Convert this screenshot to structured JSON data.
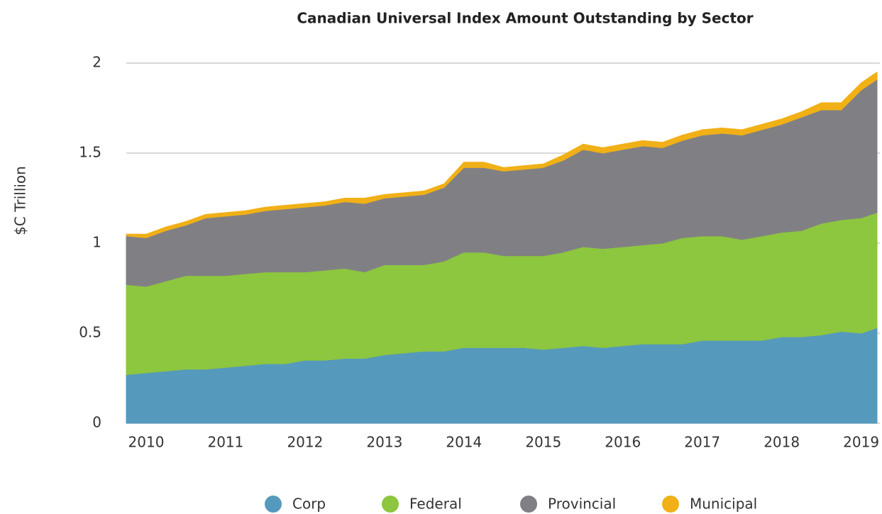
{
  "chart_data": {
    "type": "stacked_area",
    "title": "Canadian Universal Index Amount Outstanding by Sector",
    "y_label": "$C Trillion",
    "x": [
      2009.75,
      2010.0,
      2010.25,
      2010.5,
      2010.75,
      2011.0,
      2011.25,
      2011.5,
      2011.75,
      2012.0,
      2012.25,
      2012.5,
      2012.75,
      2013.0,
      2013.25,
      2013.5,
      2013.75,
      2014.0,
      2014.25,
      2014.5,
      2014.75,
      2015.0,
      2015.25,
      2015.5,
      2015.75,
      2016.0,
      2016.25,
      2016.5,
      2016.75,
      2017.0,
      2017.25,
      2017.5,
      2017.75,
      2018.0,
      2018.25,
      2018.5,
      2018.75,
      2019.0,
      2019.2
    ],
    "series": [
      {
        "name": "Corp",
        "color": "#5599bd",
        "values": [
          0.27,
          0.28,
          0.29,
          0.3,
          0.3,
          0.31,
          0.32,
          0.33,
          0.33,
          0.35,
          0.35,
          0.36,
          0.36,
          0.38,
          0.39,
          0.4,
          0.4,
          0.42,
          0.42,
          0.42,
          0.42,
          0.41,
          0.42,
          0.43,
          0.42,
          0.43,
          0.44,
          0.44,
          0.44,
          0.46,
          0.46,
          0.46,
          0.46,
          0.48,
          0.48,
          0.49,
          0.51,
          0.5,
          0.53
        ]
      },
      {
        "name": "Federal",
        "color": "#8dc63f",
        "values": [
          0.5,
          0.48,
          0.5,
          0.52,
          0.52,
          0.51,
          0.51,
          0.51,
          0.51,
          0.49,
          0.5,
          0.5,
          0.48,
          0.5,
          0.49,
          0.48,
          0.5,
          0.53,
          0.53,
          0.51,
          0.51,
          0.52,
          0.53,
          0.55,
          0.55,
          0.55,
          0.55,
          0.56,
          0.59,
          0.58,
          0.58,
          0.56,
          0.58,
          0.58,
          0.59,
          0.62,
          0.62,
          0.64,
          0.64
        ]
      },
      {
        "name": "Provincial",
        "color": "#808084",
        "values": [
          0.27,
          0.27,
          0.28,
          0.28,
          0.32,
          0.33,
          0.33,
          0.34,
          0.35,
          0.36,
          0.36,
          0.37,
          0.38,
          0.37,
          0.38,
          0.39,
          0.41,
          0.47,
          0.47,
          0.47,
          0.48,
          0.49,
          0.51,
          0.54,
          0.53,
          0.54,
          0.55,
          0.53,
          0.54,
          0.56,
          0.57,
          0.58,
          0.59,
          0.6,
          0.63,
          0.63,
          0.61,
          0.71,
          0.74
        ]
      },
      {
        "name": "Municipal",
        "color": "#f0b016",
        "values": [
          0.01,
          0.02,
          0.02,
          0.02,
          0.02,
          0.02,
          0.02,
          0.02,
          0.02,
          0.02,
          0.02,
          0.02,
          0.03,
          0.02,
          0.02,
          0.02,
          0.02,
          0.03,
          0.03,
          0.02,
          0.02,
          0.02,
          0.03,
          0.03,
          0.03,
          0.03,
          0.03,
          0.03,
          0.03,
          0.03,
          0.03,
          0.03,
          0.03,
          0.03,
          0.03,
          0.04,
          0.04,
          0.04,
          0.04
        ]
      }
    ],
    "xlim": [
      2009.75,
      2019.2
    ],
    "xticks": [
      2010,
      2011,
      2012,
      2013,
      2014,
      2015,
      2016,
      2017,
      2018,
      2019
    ],
    "ylim": [
      0,
      2
    ],
    "yticks": [
      0,
      0.5,
      1,
      1.5,
      2
    ],
    "grid": true,
    "legend": "bottom"
  }
}
